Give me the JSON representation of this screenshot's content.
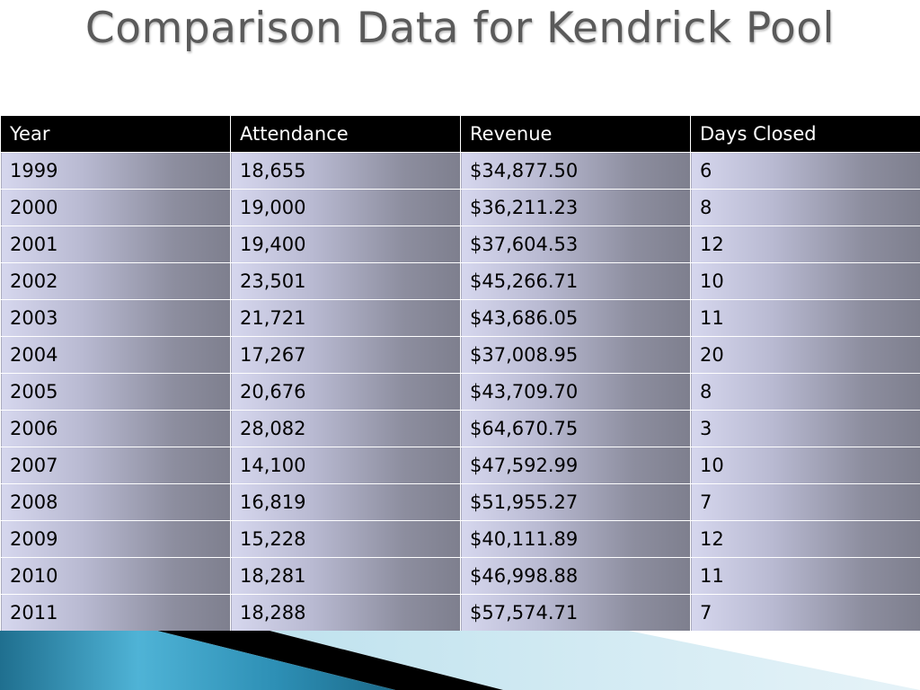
{
  "slide": {
    "title": "Comparison Data for Kendrick Pool"
  },
  "table": {
    "headers": [
      "Year",
      "Attendance",
      "Revenue",
      "Days Closed"
    ],
    "rows": [
      [
        "1999",
        "18,655",
        "$34,877.50",
        "6"
      ],
      [
        "2000",
        "19,000",
        "$36,211.23",
        "8"
      ],
      [
        "2001",
        "19,400",
        "$37,604.53",
        "12"
      ],
      [
        "2002",
        "23,501",
        "$45,266.71",
        "10"
      ],
      [
        "2003",
        "21,721",
        "$43,686.05",
        "11"
      ],
      [
        "2004",
        "17,267",
        "$37,008.95",
        "20"
      ],
      [
        "2005",
        "20,676",
        "$43,709.70",
        "8"
      ],
      [
        "2006",
        "28,082",
        "$64,670.75",
        "3"
      ],
      [
        "2007",
        "14,100",
        "$47,592.99",
        "10"
      ],
      [
        "2008",
        "16,819",
        "$51,955.27",
        "7"
      ],
      [
        "2009",
        "15,228",
        "$40,111.89",
        "12"
      ],
      [
        "2010",
        "18,281",
        "$46,998.88",
        "11"
      ],
      [
        "2011",
        "18,288",
        "$57,574.71",
        "7"
      ]
    ]
  },
  "theme": {
    "header_bg": "#000000",
    "header_text": "#ffffff",
    "cell_gradient_start": "#d6d7ee",
    "cell_gradient_end": "#7e7f8e",
    "title_color": "#5a5a5a",
    "accent_blue": "#2a8fb3"
  }
}
